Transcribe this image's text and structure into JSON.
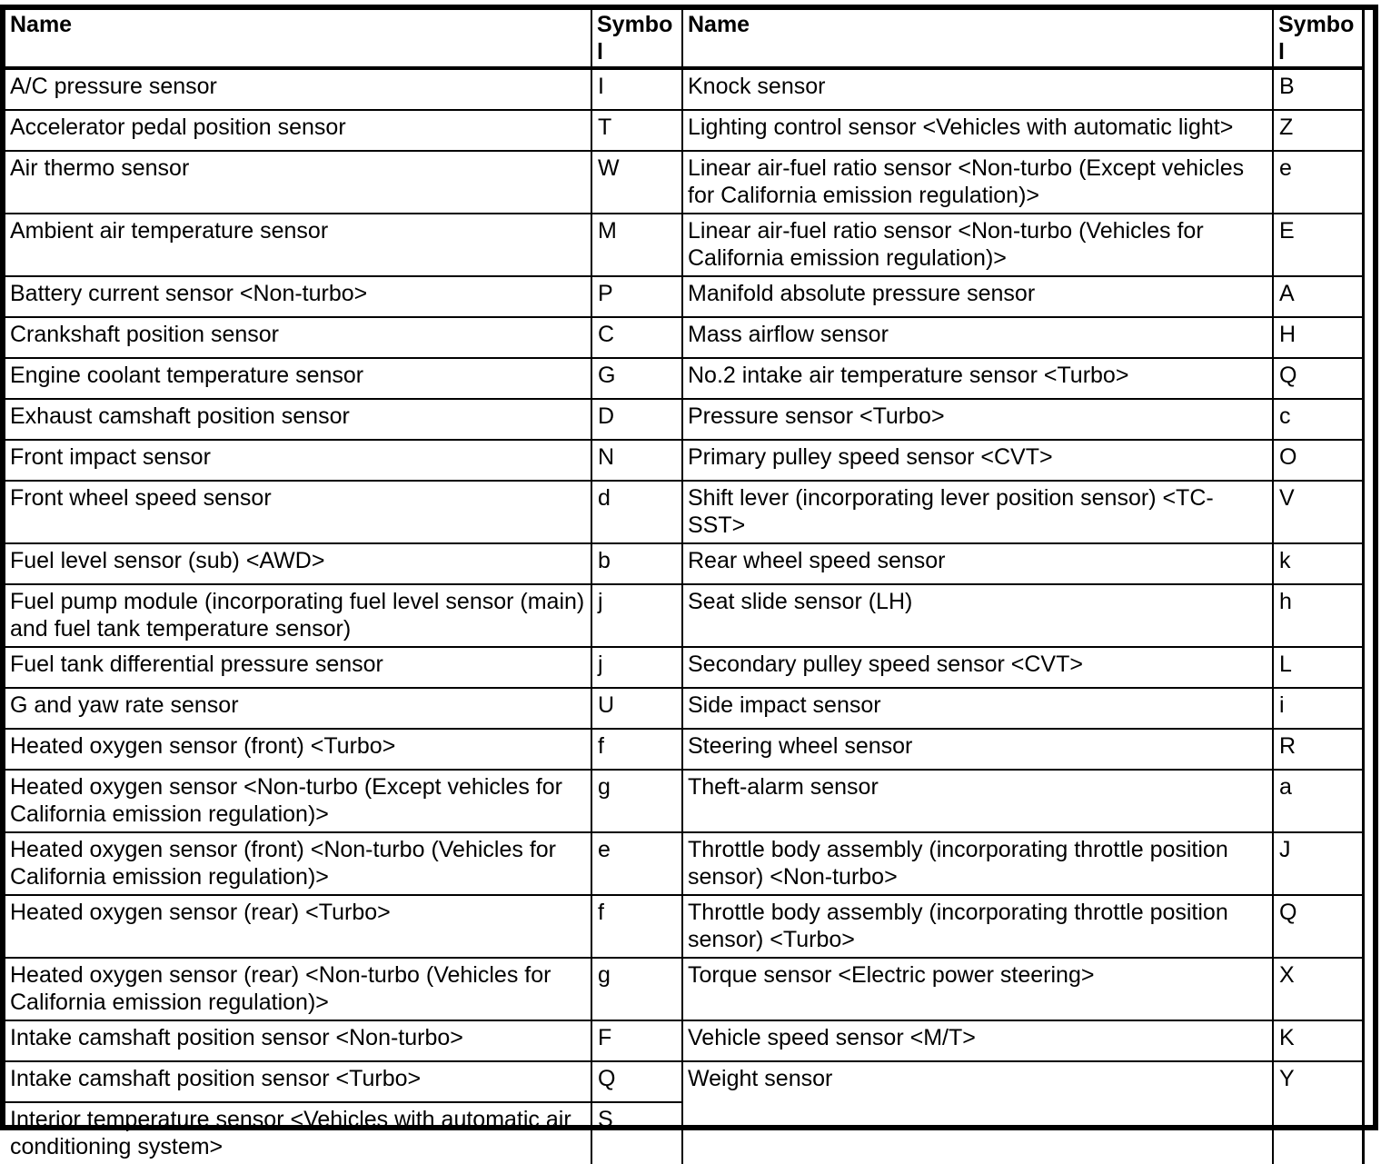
{
  "table": {
    "columns": [
      "Name",
      "Symbol",
      "Name",
      "Symbol"
    ],
    "rows": [
      {
        "cells": [
          {
            "text": "A/C pressure sensor"
          },
          {
            "text": "I"
          },
          {
            "text": "Knock sensor"
          },
          {
            "text": "B"
          }
        ]
      },
      {
        "cells": [
          {
            "text": "Accelerator pedal position sensor"
          },
          {
            "text": "T"
          },
          {
            "text": "Lighting control sensor <Vehicles with automatic light>"
          },
          {
            "text": "Z"
          }
        ]
      },
      {
        "cells": [
          {
            "text": "Air thermo sensor"
          },
          {
            "text": "W"
          },
          {
            "text": "Linear air-fuel ratio sensor <Non-turbo (Except vehicles for California emission regulation)>"
          },
          {
            "text": "e"
          }
        ]
      },
      {
        "cells": [
          {
            "text": "Ambient air temperature sensor"
          },
          {
            "text": "M"
          },
          {
            "text": "Linear air-fuel ratio sensor <Non-turbo (Vehicles for California emission regulation)>"
          },
          {
            "text": "E"
          }
        ]
      },
      {
        "cells": [
          {
            "text": "Battery current sensor <Non-turbo>"
          },
          {
            "text": "P"
          },
          {
            "text": "Manifold absolute pressure sensor"
          },
          {
            "text": "A"
          }
        ]
      },
      {
        "cells": [
          {
            "text": "Crankshaft position sensor"
          },
          {
            "text": "C"
          },
          {
            "text": "Mass airflow sensor"
          },
          {
            "text": "H"
          }
        ]
      },
      {
        "cells": [
          {
            "text": "Engine coolant temperature sensor"
          },
          {
            "text": "G"
          },
          {
            "text": "No.2 intake air temperature sensor <Turbo>"
          },
          {
            "text": "Q"
          }
        ]
      },
      {
        "cells": [
          {
            "text": "Exhaust camshaft position sensor"
          },
          {
            "text": "D"
          },
          {
            "text": "Pressure sensor <Turbo>"
          },
          {
            "text": "c"
          }
        ]
      },
      {
        "cells": [
          {
            "text": "Front impact sensor"
          },
          {
            "text": "N"
          },
          {
            "text": "Primary pulley speed sensor <CVT>"
          },
          {
            "text": "O"
          }
        ]
      },
      {
        "cells": [
          {
            "text": "Front wheel speed sensor"
          },
          {
            "text": "d"
          },
          {
            "text": "Shift lever (incorporating lever position sensor) <TC-SST>"
          },
          {
            "text": "V"
          }
        ]
      },
      {
        "cells": [
          {
            "text": "Fuel level sensor (sub) <AWD>"
          },
          {
            "text": "b"
          },
          {
            "text": "Rear wheel speed sensor"
          },
          {
            "text": "k"
          }
        ]
      },
      {
        "cells": [
          {
            "text": "Fuel pump module (incorporating fuel level sensor (main) and fuel tank temperature sensor)"
          },
          {
            "text": "j"
          },
          {
            "text": "Seat slide sensor (LH)"
          },
          {
            "text": "h"
          }
        ]
      },
      {
        "cells": [
          {
            "text": "Fuel tank differential pressure sensor"
          },
          {
            "text": "j"
          },
          {
            "text": "Secondary pulley speed sensor <CVT>"
          },
          {
            "text": "L"
          }
        ]
      },
      {
        "cells": [
          {
            "text": "G and yaw rate sensor"
          },
          {
            "text": "U"
          },
          {
            "text": "Side impact sensor"
          },
          {
            "text": "i"
          }
        ]
      },
      {
        "cells": [
          {
            "text": "Heated oxygen sensor (front) <Turbo>"
          },
          {
            "text": "f"
          },
          {
            "text": "Steering wheel sensor"
          },
          {
            "text": "R"
          }
        ]
      },
      {
        "cells": [
          {
            "text": "Heated oxygen sensor <Non-turbo (Except vehicles for California emission regulation)>"
          },
          {
            "text": "g"
          },
          {
            "text": "Theft-alarm sensor"
          },
          {
            "text": "a"
          }
        ]
      },
      {
        "cells": [
          {
            "text": "Heated oxygen sensor (front) <Non-turbo (Vehicles for California emission regulation)>"
          },
          {
            "text": "e"
          },
          {
            "text": "Throttle body assembly (incorporating throttle position sensor) <Non-turbo>"
          },
          {
            "text": "J"
          }
        ]
      },
      {
        "cells": [
          {
            "text": "Heated oxygen sensor (rear) <Turbo>"
          },
          {
            "text": "f"
          },
          {
            "text": "Throttle body assembly (incorporating throttle position sensor) <Turbo>"
          },
          {
            "text": "Q"
          }
        ]
      },
      {
        "cells": [
          {
            "text": "Heated oxygen sensor (rear) <Non-turbo (Vehicles for California emission regulation)>"
          },
          {
            "text": "g"
          },
          {
            "text": "Torque sensor <Electric power steering>"
          },
          {
            "text": "X"
          }
        ]
      },
      {
        "cells": [
          {
            "text": "Intake camshaft position sensor <Non-turbo>"
          },
          {
            "text": "F"
          },
          {
            "text": "Vehicle speed sensor <M/T>"
          },
          {
            "text": "K"
          }
        ]
      },
      {
        "cells": [
          {
            "text": "Intake camshaft position sensor <Turbo>"
          },
          {
            "text": "Q"
          },
          {
            "text": "Weight sensor",
            "rowspan": 2
          },
          {
            "text": "Y",
            "rowspan": 2
          }
        ]
      },
      {
        "cells": [
          {
            "text": "Interior temperature sensor <Vehicles with automatic air conditioning system>"
          },
          {
            "text": "S"
          }
        ]
      }
    ]
  }
}
